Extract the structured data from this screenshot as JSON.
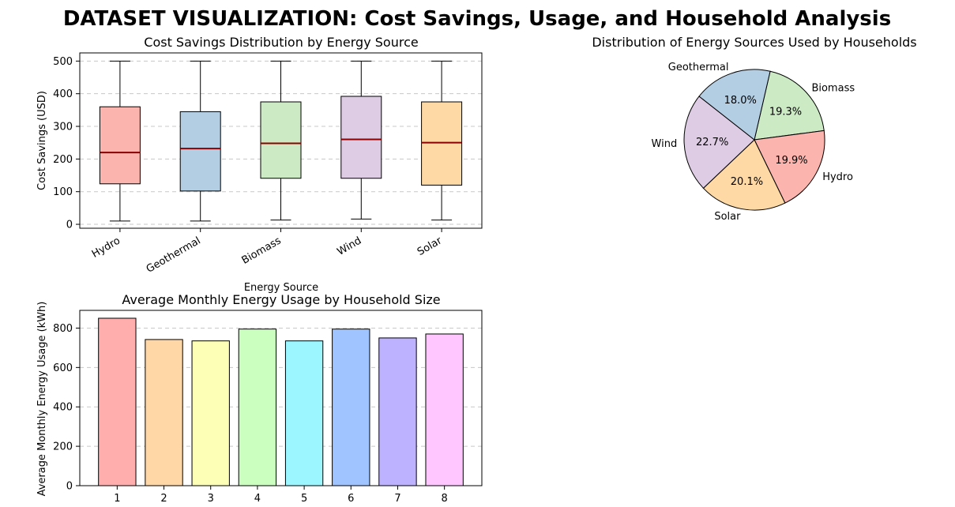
{
  "figure": {
    "title": "DATASET VISUALIZATION: Cost Savings, Usage, and Household Analysis"
  },
  "chart_data": [
    {
      "type": "boxplot",
      "title": "Cost Savings Distribution by Energy Source",
      "xlabel": "Energy Source",
      "ylabel": "Cost Savings (USD)",
      "ylim": [
        -12,
        525
      ],
      "yticks": [
        0,
        100,
        200,
        300,
        400,
        500
      ],
      "grid": "y-dashed",
      "categories": [
        "Hydro",
        "Geothermal",
        "Biomass",
        "Wind",
        "Solar"
      ],
      "boxes": [
        {
          "whisker_low": 10,
          "q1": 124,
          "median": 220,
          "q3": 360,
          "whisker_high": 500
        },
        {
          "whisker_low": 10,
          "q1": 102,
          "median": 232,
          "q3": 345,
          "whisker_high": 500
        },
        {
          "whisker_low": 13,
          "q1": 141,
          "median": 248,
          "q3": 375,
          "whisker_high": 500
        },
        {
          "whisker_low": 16,
          "q1": 141,
          "median": 260,
          "q3": 392,
          "whisker_high": 500
        },
        {
          "whisker_low": 13,
          "q1": 120,
          "median": 250,
          "q3": 375,
          "whisker_high": 500
        }
      ],
      "colors": [
        "#fbb4ae",
        "#b3cde3",
        "#ccebc5",
        "#decbe4",
        "#fed9a6"
      ],
      "median_color": "#8b0000"
    },
    {
      "type": "pie",
      "title": "Distribution of Energy Sources Used by Households",
      "start_angle_deg": 77,
      "slices": [
        {
          "label": "Biomass",
          "value": 19.3,
          "pct": "19.3%",
          "color": "#ccebc5"
        },
        {
          "label": "Hydro",
          "value": 19.9,
          "pct": "19.9%",
          "color": "#fbb4ae"
        },
        {
          "label": "Solar",
          "value": 20.1,
          "pct": "20.1%",
          "color": "#fed9a6"
        },
        {
          "label": "Wind",
          "value": 22.7,
          "pct": "22.7%",
          "color": "#decbe4"
        },
        {
          "label": "Geothermal",
          "value": 18.0,
          "pct": "18.0%",
          "color": "#b3cde3"
        }
      ]
    },
    {
      "type": "bar",
      "title": "Average Monthly Energy Usage by Household Size",
      "xlabel": "",
      "ylabel": "Average Monthly Energy Usage (kWh)",
      "ylim": [
        0,
        890
      ],
      "yticks": [
        0,
        200,
        400,
        600,
        800
      ],
      "grid": "y-dashed",
      "categories": [
        "1",
        "2",
        "3",
        "4",
        "5",
        "6",
        "7",
        "8"
      ],
      "values": [
        850,
        742,
        735,
        795,
        735,
        795,
        750,
        770
      ],
      "colors": [
        "#ffadad",
        "#ffd6a5",
        "#fdffb6",
        "#caffbf",
        "#9bf6ff",
        "#a0c4ff",
        "#bdb2ff",
        "#ffc6ff"
      ]
    }
  ]
}
